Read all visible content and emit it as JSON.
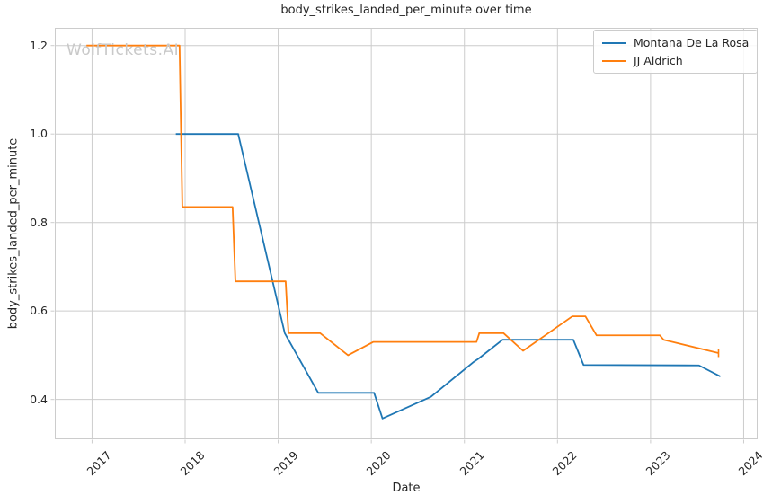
{
  "chart_data": {
    "type": "line",
    "title": "body_strikes_landed_per_minute over time",
    "xlabel": "Date",
    "ylabel": "body_strikes_landed_per_minute",
    "watermark": "WolfTickets.AI",
    "x_ticks": [
      2017,
      2018,
      2019,
      2020,
      2021,
      2022,
      2023,
      2024
    ],
    "x_tick_labels": [
      "2017",
      "2018",
      "2019",
      "2020",
      "2021",
      "2022",
      "2023",
      "2024"
    ],
    "y_ticks": [
      0.4,
      0.6,
      0.8,
      1.0,
      1.2
    ],
    "y_tick_labels": [
      "0.4",
      "0.6",
      "0.8",
      "1.0",
      "1.2"
    ],
    "xlim": [
      2016.6,
      2024.15
    ],
    "ylim": [
      0.31,
      1.24
    ],
    "grid": true,
    "legend_position": "upper right",
    "colors": {
      "background": "#ffffff",
      "grid": "#cccccc",
      "spine": "#cccccc",
      "text": "#262626",
      "watermark": "#c9c9c9"
    },
    "series": [
      {
        "name": "Montana De La Rosa",
        "color": "#1f77b4",
        "end_marker": false,
        "points": [
          [
            2017.9,
            1.0
          ],
          [
            2018.57,
            1.0
          ],
          [
            2019.07,
            0.55
          ],
          [
            2019.43,
            0.415
          ],
          [
            2020.03,
            0.415
          ],
          [
            2020.12,
            0.357
          ],
          [
            2020.64,
            0.406
          ],
          [
            2021.1,
            0.485
          ],
          [
            2021.15,
            0.492
          ],
          [
            2021.41,
            0.535
          ],
          [
            2022.17,
            0.535
          ],
          [
            2022.28,
            0.478
          ],
          [
            2023.52,
            0.477
          ],
          [
            2023.75,
            0.452
          ]
        ]
      },
      {
        "name": "JJ Aldrich",
        "color": "#ff7f0e",
        "end_marker": true,
        "points": [
          [
            2016.94,
            1.2
          ],
          [
            2017.94,
            1.2
          ],
          [
            2017.97,
            0.835
          ],
          [
            2018.51,
            0.835
          ],
          [
            2018.54,
            0.667
          ],
          [
            2019.08,
            0.667
          ],
          [
            2019.11,
            0.55
          ],
          [
            2019.45,
            0.55
          ],
          [
            2019.75,
            0.5
          ],
          [
            2020.02,
            0.53
          ],
          [
            2021.13,
            0.53
          ],
          [
            2021.16,
            0.55
          ],
          [
            2021.42,
            0.55
          ],
          [
            2021.63,
            0.51
          ],
          [
            2022.16,
            0.588
          ],
          [
            2022.3,
            0.588
          ],
          [
            2022.42,
            0.545
          ],
          [
            2023.1,
            0.545
          ],
          [
            2023.14,
            0.535
          ],
          [
            2023.73,
            0.505
          ]
        ]
      }
    ]
  }
}
